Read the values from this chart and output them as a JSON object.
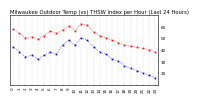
{
  "title": "Milwaukee Outdoor Temp (vs) THSW Index per Hour (Last 24 Hours)",
  "temp": [
    58,
    54,
    50,
    51,
    49,
    52,
    56,
    54,
    57,
    60,
    56,
    62,
    61,
    55,
    52,
    50,
    48,
    46,
    44,
    43,
    42,
    41,
    40,
    38
  ],
  "thsw": [
    42,
    38,
    34,
    35,
    32,
    35,
    38,
    36,
    44,
    48,
    44,
    50,
    48,
    42,
    38,
    36,
    32,
    30,
    26,
    24,
    22,
    20,
    18,
    16
  ],
  "hours": [
    0,
    1,
    2,
    3,
    4,
    5,
    6,
    7,
    8,
    9,
    10,
    11,
    12,
    13,
    14,
    15,
    16,
    17,
    18,
    19,
    20,
    21,
    22,
    23
  ],
  "xlabels": [
    "0",
    "1",
    "2",
    "3",
    "4",
    "5",
    "6",
    "7",
    "8",
    "9",
    "10",
    "11",
    "12",
    "13",
    "14",
    "15",
    "16",
    "17",
    "18",
    "19",
    "20",
    "21",
    "22",
    "23"
  ],
  "ylim": [
    10,
    70
  ],
  "yticks": [
    20,
    30,
    40,
    50,
    60
  ],
  "ytick_labels": [
    "20",
    "30",
    "40",
    "50",
    "60"
  ],
  "temp_color": "#ff0000",
  "thsw_color": "#0000cc",
  "bg_color": "#ffffff",
  "grid_color": "#bbbbbb",
  "title_fontsize": 3.8,
  "tick_fontsize": 3.0,
  "ylabel_fontsize": 3.0
}
